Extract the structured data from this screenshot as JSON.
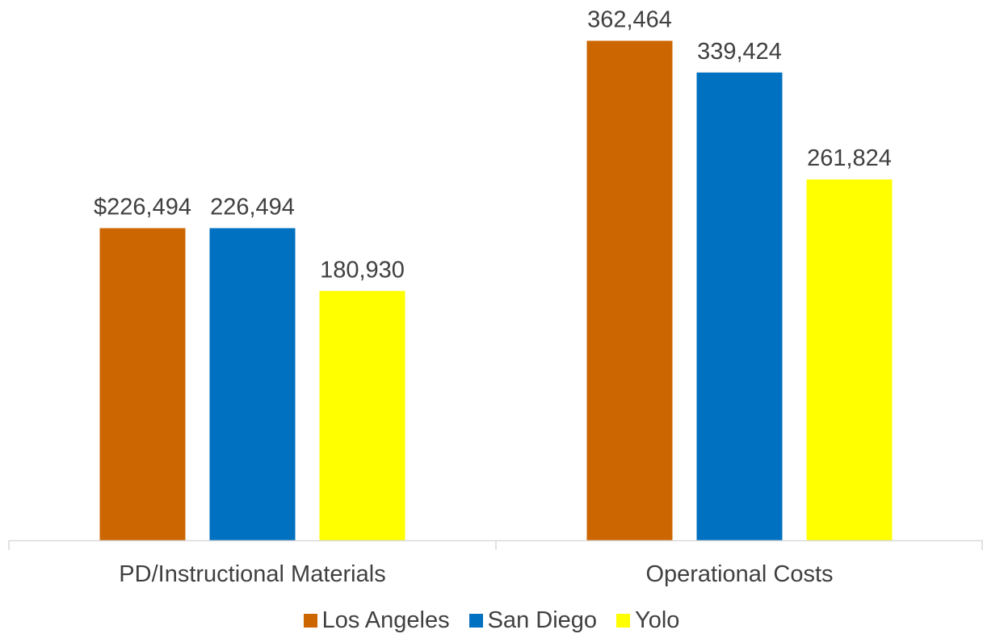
{
  "chart_data": {
    "type": "bar",
    "title": "",
    "xlabel": "",
    "ylabel": "",
    "categories": [
      "PD/Instructional Materials",
      "Operational Costs"
    ],
    "series": [
      {
        "name": "Los Angeles",
        "values": [
          226494,
          362464
        ],
        "labels": [
          "$226,494",
          "362,464"
        ],
        "color": "#CC6600"
      },
      {
        "name": "San Diego",
        "values": [
          226494,
          339424
        ],
        "labels": [
          "226,494",
          "339,424"
        ],
        "color": "#0070C0"
      },
      {
        "name": "Yolo",
        "values": [
          180930,
          261824
        ],
        "labels": [
          "180,930",
          "261,824"
        ],
        "color": "#FFFF00"
      }
    ],
    "ylim": [
      0,
      400000
    ],
    "grid": false,
    "legend": "bottom"
  }
}
